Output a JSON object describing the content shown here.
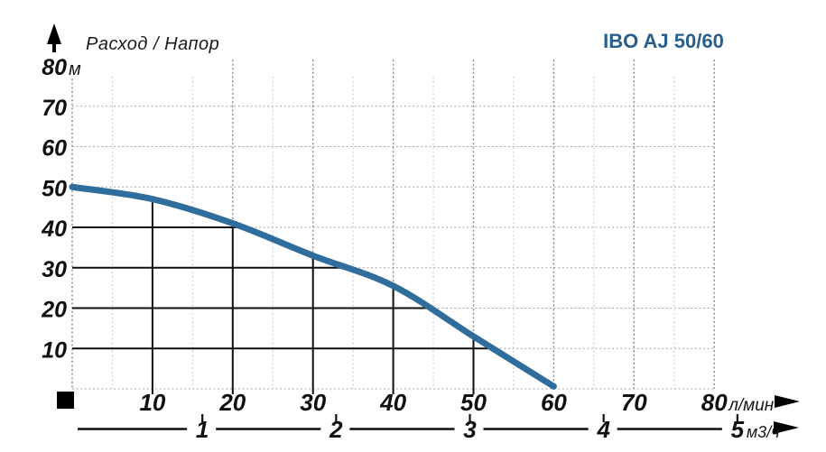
{
  "chart_data": {
    "type": "line",
    "title": "IBO AJ 50/60",
    "axis_title": "Расход / Напор",
    "y_unit": "м",
    "x_unit_primary": "л/мин",
    "x_unit_secondary": "м3/ч",
    "xlim_lpm": [
      0,
      80
    ],
    "ylim_m": [
      0,
      80
    ],
    "y_ticks_m": [
      10,
      20,
      30,
      40,
      50,
      60,
      70,
      80
    ],
    "x_ticks_lpm": [
      10,
      20,
      30,
      40,
      50,
      60,
      70,
      80
    ],
    "x_ticks_m3h": [
      1,
      2,
      3,
      4,
      5
    ],
    "lpm_per_m3h": 16.667,
    "series": [
      {
        "name": "IBO AJ 50/60",
        "x_lpm": [
          0,
          10,
          20,
          30,
          40,
          50,
          60
        ],
        "head_m": [
          50,
          47,
          41,
          33,
          25.5,
          13,
          0.6
        ]
      }
    ],
    "grid": {
      "dotted_h_m": [
        0,
        10,
        20,
        30,
        40,
        50,
        60,
        70
      ],
      "dark_dotted_v_lpm": [
        0,
        20,
        30,
        40,
        50,
        60,
        70,
        80
      ],
      "light_dotted_v_lpm": [
        5,
        15,
        25,
        35,
        45,
        55,
        65,
        75
      ],
      "solid_h_lines": [
        {
          "y_m": 40,
          "x_end_lpm": 21.2
        },
        {
          "y_m": 30,
          "x_end_lpm": 33.8
        },
        {
          "y_m": 20,
          "x_end_lpm": 45.2
        },
        {
          "y_m": 10,
          "x_end_lpm": 52.6
        }
      ],
      "solid_v_lines": [
        {
          "x_lpm": 10,
          "y_end_m": 46.8
        },
        {
          "x_lpm": 20,
          "y_end_m": 41.0
        },
        {
          "x_lpm": 30,
          "y_end_m": 33.0
        },
        {
          "x_lpm": 40,
          "y_end_m": 25.3
        },
        {
          "x_lpm": 50,
          "y_end_m": 13.2
        }
      ]
    },
    "colors": {
      "curve": "#2e6d9c",
      "title": "#295f8d",
      "solid_line": "#0f0f0f",
      "grid_dark": "#8e8e8e",
      "grid_light": "#cccccc",
      "grid_horizontal": "#a6a6a6",
      "marker_black": "#000000"
    }
  }
}
